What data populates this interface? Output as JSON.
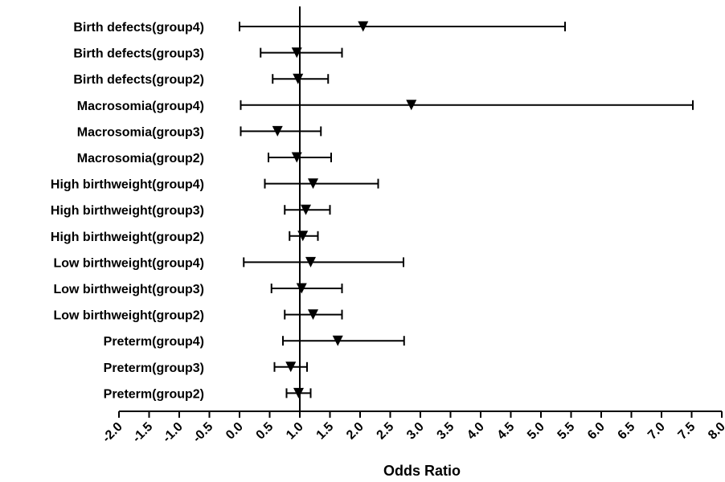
{
  "chart_data": {
    "type": "forest",
    "xlabel": "Odds Ratio",
    "xlim": [
      -2.0,
      8.0
    ],
    "xtick_step": 0.5,
    "xticks": [
      "-2.0",
      "-1.5",
      "-1.0",
      "-0.5",
      "0.0",
      "0.5",
      "1.0",
      "1.5",
      "2.0",
      "2.5",
      "3.0",
      "3.5",
      "4.0",
      "4.5",
      "5.0",
      "5.5",
      "6.0",
      "6.5",
      "7.0",
      "7.5",
      "8.0"
    ],
    "reference_line": 1.0,
    "marker": "triangle-down",
    "rows": [
      {
        "label": "Birth defects(group4)",
        "estimate": 2.05,
        "lower": 0.0,
        "upper": 5.4
      },
      {
        "label": "Birth defects(group3)",
        "estimate": 0.95,
        "lower": 0.35,
        "upper": 1.7
      },
      {
        "label": "Birth defects(group2)",
        "estimate": 0.97,
        "lower": 0.55,
        "upper": 1.47
      },
      {
        "label": "Macrosomia(group4)",
        "estimate": 2.85,
        "lower": 0.02,
        "upper": 7.52
      },
      {
        "label": "Macrosomia(group3)",
        "estimate": 0.63,
        "lower": 0.02,
        "upper": 1.35
      },
      {
        "label": "Macrosomia(group2)",
        "estimate": 0.95,
        "lower": 0.48,
        "upper": 1.52
      },
      {
        "label": "High birthweight(group4)",
        "estimate": 1.22,
        "lower": 0.42,
        "upper": 2.3
      },
      {
        "label": "High birthweight(group3)",
        "estimate": 1.1,
        "lower": 0.75,
        "upper": 1.5
      },
      {
        "label": "High birthweight(group2)",
        "estimate": 1.05,
        "lower": 0.83,
        "upper": 1.3
      },
      {
        "label": "Low birthweight(group4)",
        "estimate": 1.18,
        "lower": 0.07,
        "upper": 2.72
      },
      {
        "label": "Low birthweight(group3)",
        "estimate": 1.03,
        "lower": 0.53,
        "upper": 1.7
      },
      {
        "label": "Low birthweight(group2)",
        "estimate": 1.22,
        "lower": 0.75,
        "upper": 1.7
      },
      {
        "label": "Preterm(group4)",
        "estimate": 1.63,
        "lower": 0.72,
        "upper": 2.73
      },
      {
        "label": "Preterm(group3)",
        "estimate": 0.85,
        "lower": 0.58,
        "upper": 1.12
      },
      {
        "label": "Preterm(group2)",
        "estimate": 0.98,
        "lower": 0.78,
        "upper": 1.18
      }
    ],
    "colors": {
      "line": "#000000",
      "marker": "#000000"
    }
  }
}
